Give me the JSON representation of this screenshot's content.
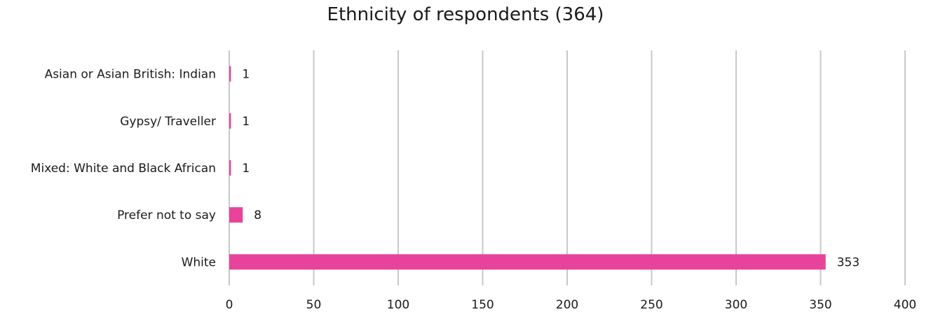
{
  "chart_data": {
    "type": "bar",
    "orientation": "horizontal",
    "title": "Ethnicity of respondents (364)",
    "categories": [
      "Asian or Asian British: Indian",
      "Gypsy/ Traveller",
      "Mixed: White and Black African",
      "Prefer not to say",
      "White"
    ],
    "values": [
      1,
      1,
      1,
      8,
      353
    ],
    "xlim": [
      0,
      400
    ],
    "xticks": [
      0,
      50,
      100,
      150,
      200,
      250,
      300,
      350,
      400
    ],
    "grid": true,
    "data_labels": true,
    "bar_color": "#e8439a",
    "grid_color": "#c8c8c8"
  }
}
